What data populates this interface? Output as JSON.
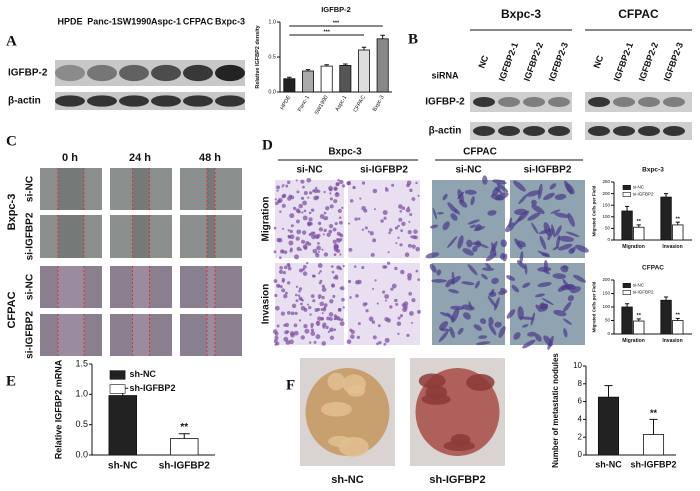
{
  "panel_labels": [
    "A",
    "B",
    "C",
    "D",
    "E",
    "F"
  ],
  "blot_a": {
    "columns": [
      "HPDE",
      "Panc-1",
      "SW1990",
      "Aspc-1",
      "CFPAC",
      "Bxpc-3"
    ],
    "rows": [
      "IGFBP-2",
      "β-actin"
    ]
  },
  "blot_b": {
    "groups": [
      "Bxpc-3",
      "CFPAC"
    ],
    "row_label": "siRNA",
    "lanes": [
      "NC",
      "IGFBP2-1",
      "IGFBP2-2",
      "IGFBP2-3"
    ],
    "rows": [
      "IGFBP-2",
      "β-actin"
    ]
  },
  "wound_c": {
    "times": [
      "0 h",
      "24 h",
      "48 h"
    ],
    "groups": [
      "Bxpc-3",
      "CFPAC"
    ],
    "conditions": [
      "si-NC",
      "si-IGFBP2"
    ]
  },
  "micro_d": {
    "groups": [
      "Bxpc-3",
      "CFPAC"
    ],
    "conditions": [
      "si-NC",
      "si-IGFBP2"
    ],
    "rows": [
      "Migration",
      "Invasion"
    ]
  },
  "mice_f": {
    "captions": [
      "sh-NC",
      "sh-IGFBP2"
    ]
  },
  "chart_data": [
    {
      "type": "bar",
      "title": "IGFBP-2",
      "y_label": "Relative IGFBP2 density",
      "categories": [
        "HPDE",
        "Panc-1",
        "SW1990",
        "Aspc-1",
        "CFPAC",
        "Bxpc-3"
      ],
      "values": [
        0.19,
        0.3,
        0.37,
        0.38,
        0.6,
        0.76
      ],
      "errors": [
        0.02,
        0.02,
        0.02,
        0.02,
        0.04,
        0.05
      ],
      "colors": [
        "#222222",
        "#aaaaaa",
        "#ffffff",
        "#555555",
        "#dddddd",
        "#888888"
      ],
      "ylim": [
        0,
        1
      ],
      "yticks": [
        {
          "value": 0,
          "label": "0.0"
        },
        {
          "value": 0.5,
          "label": "0.5"
        },
        {
          "value": 1,
          "label": "1.0"
        }
      ],
      "comparisons": [
        {
          "from": "HPDE",
          "to": "Bxpc-3",
          "label": "***"
        },
        {
          "from": "HPDE",
          "to": "CFPAC",
          "label": "***"
        }
      ]
    },
    {
      "type": "bar",
      "title": "Bxpc-3",
      "y_label": "Migrated Cells per Field",
      "categories": [
        "Migration",
        "Invasion"
      ],
      "series": [
        {
          "name": "si-NC",
          "color": "#222222",
          "values": [
            125,
            185
          ],
          "errors": [
            20,
            15
          ]
        },
        {
          "name": "si-IGFBP2",
          "color": "#ffffff",
          "values": [
            55,
            65
          ],
          "errors": [
            10,
            12
          ],
          "significance": [
            "**",
            "**"
          ]
        }
      ],
      "ylim": [
        0,
        250
      ],
      "yticks": [
        0,
        50,
        100,
        150,
        200,
        250
      ],
      "legend": "top-left"
    },
    {
      "type": "bar",
      "title": "CFPAC",
      "y_label": "Migrated Cells per Field",
      "categories": [
        "Migration",
        "Invasion"
      ],
      "series": [
        {
          "name": "si-NC",
          "color": "#222222",
          "values": [
            100,
            125
          ],
          "errors": [
            12,
            12
          ]
        },
        {
          "name": "si-IGFBP2",
          "color": "#ffffff",
          "values": [
            48,
            50
          ],
          "errors": [
            8,
            8
          ],
          "significance": [
            "**",
            "**"
          ]
        }
      ],
      "ylim": [
        0,
        200
      ],
      "yticks": [
        0,
        50,
        100,
        150,
        200
      ],
      "legend": "top-left"
    },
    {
      "type": "bar",
      "y_label": "Relative IGFBP2 mRNA",
      "categories": [
        "sh-NC",
        "sh-IGFBP2"
      ],
      "values": [
        0.98,
        0.27
      ],
      "errors": [
        0.12,
        0.08
      ],
      "colors": [
        "#222222",
        "#ffffff"
      ],
      "significance": [
        null,
        "**"
      ],
      "ylim": [
        0,
        1.5
      ],
      "yticks": [
        {
          "value": 0,
          "label": "0.0"
        },
        {
          "value": 0.5,
          "label": "0.5"
        },
        {
          "value": 1,
          "label": "1.0"
        },
        {
          "value": 1.5,
          "label": "1.5"
        }
      ],
      "legend": "top-left"
    },
    {
      "type": "bar",
      "y_label": "Number of metastatic nodules",
      "categories": [
        "sh-NC",
        "sh-IGFBP2"
      ],
      "values": [
        6.5,
        2.3
      ],
      "errors": [
        1.3,
        1.7
      ],
      "colors": [
        "#222222",
        "#ffffff"
      ],
      "significance": [
        null,
        "**"
      ],
      "ylim": [
        0,
        10
      ],
      "yticks": [
        0,
        2,
        4,
        6,
        8,
        10
      ]
    }
  ]
}
